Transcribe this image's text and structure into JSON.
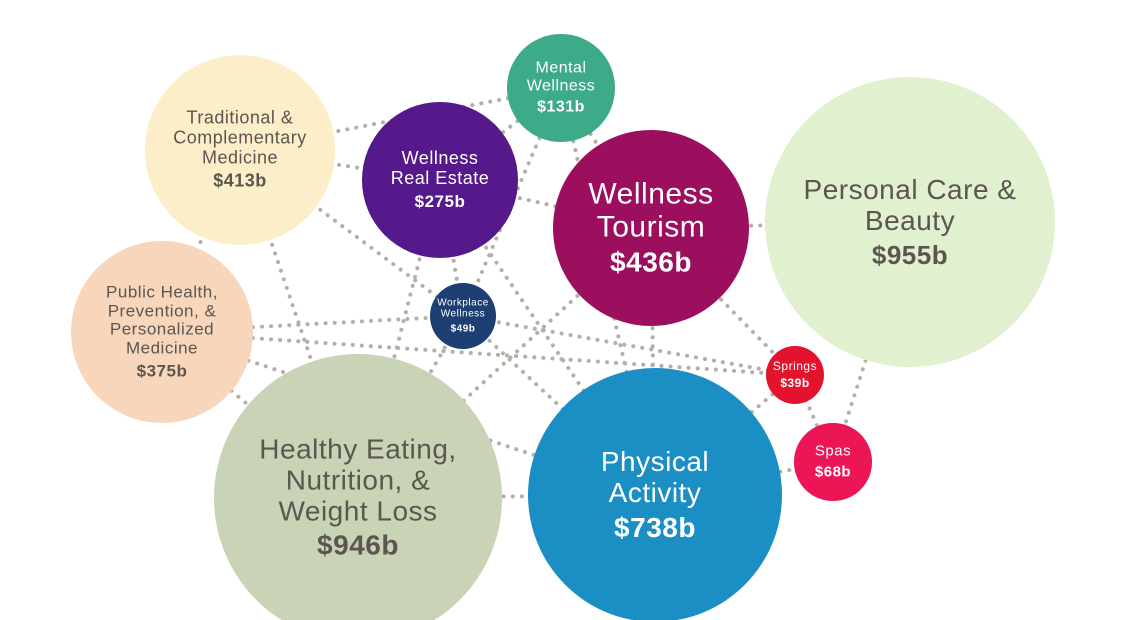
{
  "chart_data": {
    "type": "bubble",
    "categories": [
      "Traditional & Complementary Medicine",
      "Mental Wellness",
      "Wellness Real Estate",
      "Wellness Tourism",
      "Personal Care & Beauty",
      "Public Health, Prevention, & Personalized Medicine",
      "Workplace Wellness",
      "Springs",
      "Spas",
      "Healthy Eating, Nutrition, & Weight Loss",
      "Physical Activity"
    ],
    "values": [
      413,
      131,
      275,
      436,
      955,
      375,
      49,
      39,
      68,
      946,
      738
    ],
    "value_labels": [
      "$413b",
      "$131b",
      "$275b",
      "$436b",
      "$955b",
      "$375b",
      "$49b",
      "$39b",
      "$68b",
      "$946b",
      "$738b"
    ],
    "colors": [
      "#fbeec9",
      "#3daa8a",
      "#55198b",
      "#9b0f5e",
      "#e1f0cf",
      "#f8d6bb",
      "#1e3f73",
      "#e3132d",
      "#ec1556",
      "#c8d4b5",
      "#1b8fc4"
    ]
  }
}
